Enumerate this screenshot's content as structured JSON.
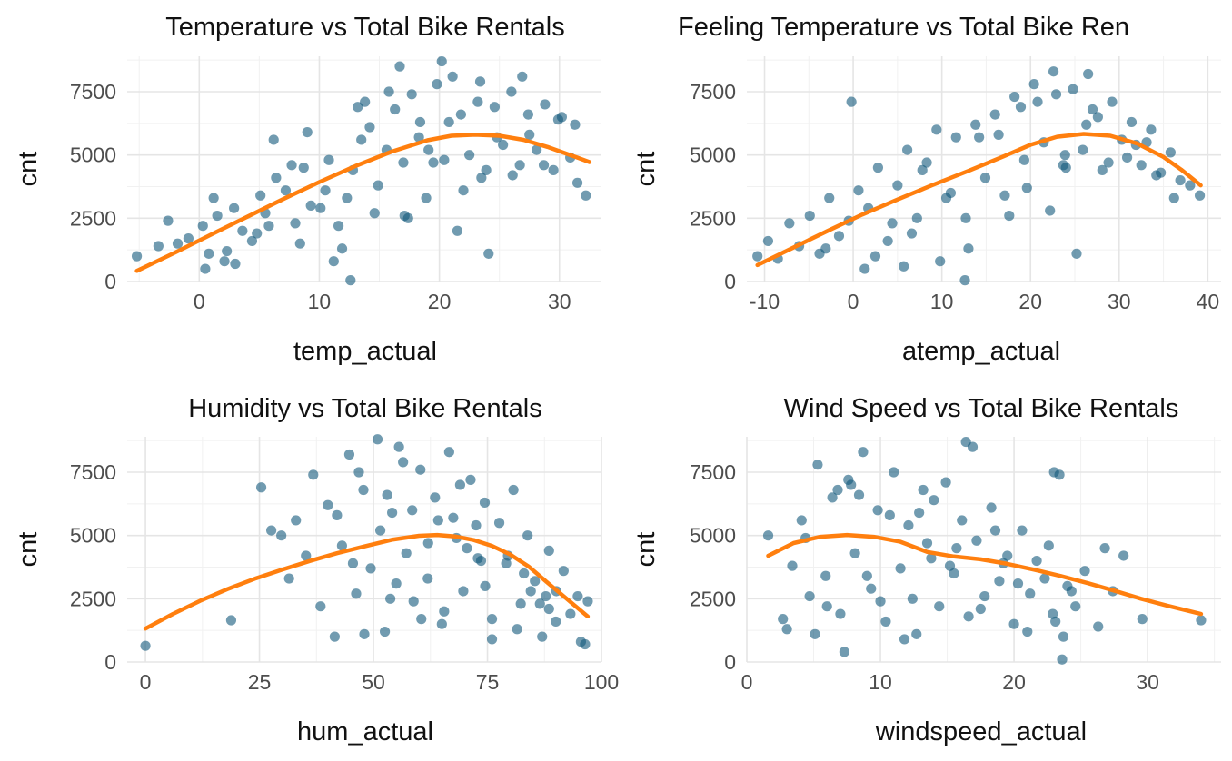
{
  "style": {
    "point_color": "#13587b",
    "smooth_color": "#ff7f0e",
    "grid_color": "#e5e5e5",
    "background": "#ffffff"
  },
  "chart_data": [
    {
      "type": "scatter",
      "title": "Temperature vs Total Bike Rentals",
      "xlabel": "temp_actual",
      "ylabel": "cnt",
      "xlim": [
        -6,
        33.5
      ],
      "ylim": [
        0,
        8900
      ],
      "xticks": [
        0,
        10,
        20,
        30
      ],
      "yticks": [
        0,
        2500,
        5000,
        7500
      ],
      "grid": true,
      "series": [
        {
          "kind": "points",
          "x": [
            -5.2,
            -3.4,
            -2.6,
            -1.8,
            -0.9,
            0.3,
            0.8,
            1.5,
            2.3,
            2.9,
            3.6,
            4.4,
            5.1,
            5.8,
            6.4,
            7.2,
            8.0,
            8.7,
            9.3,
            10.1,
            10.8,
            11.6,
            12.3,
            12.8,
            13.5,
            14.2,
            14.9,
            15.6,
            16.3,
            17.0,
            17.7,
            18.4,
            19.1,
            19.8,
            20.4,
            21.1,
            21.8,
            22.5,
            23.2,
            23.9,
            24.6,
            25.3,
            26.0,
            26.7,
            27.4,
            28.1,
            28.8,
            29.5,
            30.2,
            30.9,
            31.5,
            32.2,
            1.2,
            3.0,
            4.8,
            6.2,
            7.7,
            9.0,
            10.5,
            11.9,
            13.2,
            14.6,
            15.8,
            17.1,
            18.3,
            19.5,
            20.8,
            22.0,
            23.4,
            24.8,
            26.1,
            27.5,
            28.7,
            29.9,
            0.5,
            2.1,
            5.5,
            8.4,
            11.2,
            16.7,
            18.9,
            21.5,
            24.1,
            26.9,
            12.6,
            23.5,
            31.3,
            20.2,
            17.4,
            13.8
          ],
          "y": [
            1000,
            1400,
            2400,
            1500,
            1700,
            2200,
            1100,
            2600,
            1200,
            2900,
            2000,
            1600,
            3400,
            2200,
            4100,
            3600,
            2300,
            4500,
            3000,
            2900,
            4800,
            2200,
            3300,
            4400,
            5600,
            6100,
            3800,
            5200,
            6800,
            4700,
            7400,
            6300,
            5200,
            7800,
            4800,
            8100,
            6600,
            5000,
            7100,
            4400,
            6900,
            5400,
            7500,
            4600,
            6600,
            5200,
            7000,
            4400,
            6500,
            4900,
            3900,
            3400,
            3300,
            700,
            1900,
            5600,
            4600,
            5900,
            3600,
            1300,
            6900,
            2700,
            7500,
            2600,
            5700,
            4700,
            6300,
            3600,
            7900,
            5700,
            4200,
            5800,
            4600,
            6400,
            500,
            800,
            2700,
            1500,
            800,
            8500,
            3300,
            2000,
            1100,
            8100,
            50,
            4100,
            6200,
            8700,
            2500,
            7100
          ]
        },
        {
          "kind": "smooth",
          "x": [
            -5.2,
            -2.0,
            1.0,
            4.0,
            7.0,
            10.0,
            13.0,
            16.0,
            19.0,
            21.0,
            23.0,
            25.0,
            27.0,
            29.0,
            31.0,
            32.5
          ],
          "y": [
            420,
            1150,
            1860,
            2560,
            3260,
            3930,
            4560,
            5130,
            5580,
            5760,
            5800,
            5760,
            5600,
            5320,
            4980,
            4720
          ]
        }
      ]
    },
    {
      "type": "scatter",
      "title": "Feeling Temperature vs Total Bike Ren",
      "xlabel": "atemp_actual",
      "ylabel": "cnt",
      "xlim": [
        -12,
        41.5
      ],
      "ylim": [
        0,
        8900
      ],
      "xticks": [
        -10,
        0,
        10,
        20,
        30,
        40
      ],
      "yticks": [
        0,
        2500,
        5000,
        7500
      ],
      "grid": true,
      "series": [
        {
          "kind": "points",
          "x": [
            -10.8,
            -9.6,
            -8.5,
            -7.2,
            -6.1,
            -4.9,
            -3.8,
            -2.7,
            -1.6,
            -0.5,
            0.6,
            1.7,
            2.8,
            3.9,
            5.0,
            6.1,
            7.2,
            8.3,
            9.4,
            10.5,
            11.6,
            12.7,
            13.8,
            14.9,
            16.0,
            17.1,
            18.2,
            19.3,
            20.4,
            21.5,
            22.6,
            23.7,
            24.8,
            25.9,
            27.0,
            28.1,
            29.2,
            30.3,
            31.4,
            32.5,
            33.6,
            34.7,
            35.8,
            36.9,
            38.0,
            39.1,
            -0.2,
            2.5,
            4.4,
            7.8,
            11.0,
            14.2,
            17.6,
            20.8,
            23.9,
            26.3,
            28.8,
            31.9,
            34.2,
            1.3,
            6.6,
            9.8,
            13.0,
            16.4,
            19.6,
            22.2,
            25.2,
            27.6,
            30.9,
            33.1,
            12.6,
            26.5,
            36.2,
            18.9,
            5.7,
            -3.1,
            22.9,
            24.0
          ],
          "y": [
            1000,
            1600,
            900,
            2300,
            1400,
            2600,
            1100,
            3300,
            1800,
            2400,
            3600,
            2900,
            4500,
            1600,
            3800,
            5200,
            2500,
            4700,
            6000,
            3300,
            5700,
            2500,
            6200,
            4100,
            6600,
            3400,
            7300,
            4800,
            7800,
            5500,
            8300,
            4600,
            7600,
            5200,
            6800,
            4400,
            7100,
            5600,
            6300,
            4600,
            6000,
            4300,
            5100,
            4000,
            3800,
            3400,
            7100,
            1000,
            2300,
            4400,
            3500,
            5700,
            2600,
            7100,
            5000,
            6200,
            4700,
            5400,
            4200,
            500,
            1900,
            800,
            1300,
            5800,
            3700,
            2800,
            1100,
            6500,
            4900,
            5500,
            50,
            8200,
            3300,
            6900,
            600,
            1300,
            7400,
            4500
          ]
        },
        {
          "kind": "smooth",
          "x": [
            -10.8,
            -7.0,
            -3.0,
            1.0,
            5.0,
            9.0,
            13.0,
            17.0,
            20.0,
            23.0,
            26.0,
            29.0,
            32.0,
            35.0,
            37.0,
            39.2
          ],
          "y": [
            650,
            1300,
            1980,
            2640,
            3240,
            3820,
            4370,
            4950,
            5400,
            5720,
            5830,
            5760,
            5460,
            4920,
            4420,
            3800
          ]
        }
      ]
    },
    {
      "type": "scatter",
      "title": "Humidity vs Total Bike Rentals",
      "xlabel": "hum_actual",
      "ylabel": "cnt",
      "xlim": [
        -4,
        100
      ],
      "ylim": [
        0,
        8900
      ],
      "xticks": [
        0,
        25,
        50,
        75,
        100
      ],
      "yticks": [
        0,
        2500,
        5000,
        7500
      ],
      "grid": true,
      "series": [
        {
          "kind": "points",
          "x": [
            0.0,
            18.8,
            25.4,
            27.6,
            29.8,
            31.5,
            33.0,
            35.2,
            36.8,
            38.4,
            40.0,
            41.5,
            43.1,
            44.7,
            46.2,
            47.8,
            49.4,
            50.9,
            52.5,
            54.1,
            55.6,
            57.2,
            58.8,
            60.3,
            61.9,
            63.5,
            65.0,
            66.6,
            68.2,
            69.7,
            71.3,
            72.9,
            74.4,
            76.0,
            77.6,
            79.1,
            80.7,
            82.3,
            83.8,
            85.4,
            87.0,
            88.5,
            90.1,
            91.7,
            93.2,
            94.8,
            96.4,
            97.0,
            48.0,
            51.5,
            55.0,
            58.5,
            62.0,
            65.5,
            69.0,
            72.5,
            76.0,
            79.5,
            83.0,
            86.5,
            90.0,
            45.5,
            53.0,
            60.5,
            67.5,
            74.5,
            81.5,
            88.5,
            42.0,
            56.5,
            70.5,
            84.5,
            95.5,
            46.8,
            53.7,
            64.2,
            73.6,
            87.8
          ],
          "y": [
            640,
            1650,
            6900,
            5200,
            5000,
            3300,
            5600,
            4200,
            7400,
            2200,
            6200,
            1000,
            4600,
            8200,
            2700,
            6800,
            3700,
            8800,
            1200,
            5900,
            8500,
            4300,
            2400,
            7600,
            3300,
            6500,
            1500,
            8300,
            4900,
            2800,
            7200,
            4100,
            6300,
            1700,
            5500,
            3900,
            6800,
            2300,
            5000,
            3200,
            1000,
            4400,
            2800,
            3600,
            1900,
            2600,
            700,
            2400,
            1100,
            5200,
            3100,
            6000,
            4700,
            2000,
            7000,
            5400,
            900,
            4200,
            3500,
            2300,
            1600,
            3900,
            6600,
            1700,
            5700,
            3000,
            1300,
            2100,
            5800,
            7900,
            4500,
            2800,
            800,
            7500,
            2500,
            5600,
            4000,
            2600
          ]
        },
        {
          "kind": "smooth",
          "x": [
            0,
            6,
            12,
            18,
            24,
            30,
            36,
            42,
            48,
            54,
            60,
            64,
            68,
            72,
            76,
            80,
            84,
            88,
            92,
            97
          ],
          "y": [
            1320,
            1900,
            2420,
            2880,
            3290,
            3650,
            3990,
            4300,
            4570,
            4830,
            4990,
            5020,
            4960,
            4820,
            4590,
            4250,
            3780,
            3160,
            2560,
            1800
          ]
        }
      ]
    },
    {
      "type": "scatter",
      "title": "Wind Speed vs Total Bike Rentals",
      "xlabel": "windspeed_actual",
      "ylabel": "cnt",
      "xlim": [
        0,
        35.5
      ],
      "ylim": [
        0,
        8900
      ],
      "xticks": [
        0,
        10,
        20,
        30
      ],
      "yticks": [
        0,
        2500,
        5000,
        7500
      ],
      "grid": true,
      "series": [
        {
          "kind": "points",
          "x": [
            1.6,
            2.7,
            3.4,
            4.1,
            4.7,
            5.3,
            5.9,
            6.4,
            7.0,
            7.6,
            8.1,
            8.7,
            9.3,
            9.8,
            10.4,
            11.0,
            11.5,
            12.1,
            12.7,
            13.2,
            13.8,
            14.4,
            14.9,
            15.5,
            16.1,
            16.6,
            17.2,
            17.8,
            18.3,
            18.9,
            19.5,
            20.0,
            20.6,
            21.2,
            21.7,
            22.3,
            22.9,
            23.4,
            24.0,
            24.6,
            25.3,
            26.3,
            27.4,
            28.2,
            29.6,
            34.0,
            4.4,
            6.0,
            7.8,
            9.0,
            10.7,
            12.4,
            14.0,
            15.7,
            17.5,
            19.2,
            21.0,
            22.6,
            24.3,
            5.1,
            8.4,
            11.8,
            15.2,
            18.6,
            23.1,
            26.8,
            6.8,
            10.0,
            13.5,
            16.9,
            20.3,
            23.7,
            3.0,
            7.3,
            12.9,
            16.4,
            23.0,
            23.6
          ],
          "y": [
            5000,
            1700,
            3800,
            5600,
            2600,
            7800,
            3400,
            6500,
            1900,
            7200,
            4300,
            8300,
            2900,
            6000,
            1600,
            7500,
            3700,
            5400,
            1100,
            6800,
            4100,
            2200,
            7100,
            3500,
            5600,
            1800,
            4800,
            2600,
            6100,
            3200,
            4200,
            1500,
            5200,
            2700,
            4000,
            3300,
            1900,
            7400,
            3000,
            2200,
            3600,
            1400,
            2800,
            4200,
            1700,
            1650,
            4900,
            2200,
            7000,
            3400,
            5800,
            2500,
            6400,
            4500,
            2100,
            3900,
            1200,
            4600,
            2800,
            1100,
            6600,
            900,
            3800,
            5200,
            1600,
            4500,
            6800,
            2400,
            4700,
            8500,
            3100,
            1000,
            1300,
            400,
            5900,
            8700,
            7500,
            100
          ]
        },
        {
          "kind": "smooth",
          "x": [
            1.6,
            3.5,
            5.5,
            7.5,
            9.5,
            11.5,
            13.5,
            15.5,
            17.5,
            19.5,
            21.5,
            23.5,
            25.5,
            27.5,
            29.5,
            31.5,
            34.0
          ],
          "y": [
            4200,
            4700,
            4950,
            5020,
            4950,
            4750,
            4350,
            4170,
            4060,
            3880,
            3650,
            3400,
            3120,
            2820,
            2500,
            2220,
            1900
          ]
        }
      ]
    }
  ]
}
